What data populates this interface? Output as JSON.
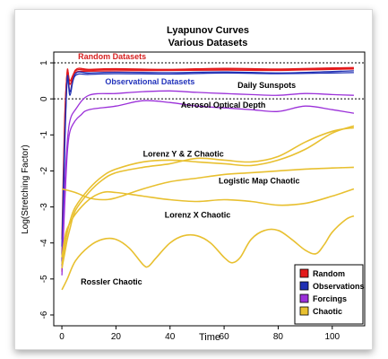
{
  "chart_data": {
    "type": "line",
    "title": "Lyapunov Curves",
    "subtitle": "Various Datasets",
    "xlabel": "Time",
    "ylabel": "Log(Stretching Factor)",
    "xlim": [
      -3,
      112
    ],
    "ylim": [
      -6.3,
      1.3
    ],
    "xticks": [
      0,
      20,
      40,
      60,
      80,
      100
    ],
    "yticks": [
      1,
      0,
      -1,
      -2,
      -3,
      -4,
      -5,
      -6
    ],
    "reference_lines": [
      1,
      0
    ],
    "grid": false,
    "legend_position": "bottom-right",
    "legend": [
      {
        "label": "Random",
        "color": "#e31a1c"
      },
      {
        "label": "Observations",
        "color": "#1f2fb4"
      },
      {
        "label": "Forcings",
        "color": "#9b30d9"
      },
      {
        "label": "Chaotic",
        "color": "#e8c030"
      }
    ],
    "annotations": [
      {
        "text": "Random Datasets",
        "x": 6,
        "y": 1.1,
        "color": "#d62020"
      },
      {
        "text": "Observational Datasets",
        "x": 16,
        "y": 0.4,
        "color": "#2233bb"
      },
      {
        "text": "Daily Sunspots",
        "x": 65,
        "y": 0.3,
        "color": "#000000"
      },
      {
        "text": "Aerosol Optical Depth",
        "x": 44,
        "y": -0.25,
        "color": "#000000"
      },
      {
        "text": "Lorenz Y & Z Chaotic",
        "x": 30,
        "y": -1.6,
        "color": "#000000"
      },
      {
        "text": "Logistic Map Chaotic",
        "x": 58,
        "y": -2.35,
        "color": "#000000"
      },
      {
        "text": "Lorenz X Chaotic",
        "x": 38,
        "y": -3.3,
        "color": "#000000"
      },
      {
        "text": "Rossler Chaotic",
        "x": 7,
        "y": -5.15,
        "color": "#000000"
      }
    ],
    "series": [
      {
        "group": "Random",
        "color": "#e31a1c",
        "x": [
          0,
          1,
          2,
          3,
          5,
          10,
          20,
          40,
          60,
          80,
          100,
          108
        ],
        "y": [
          -4.8,
          -1,
          0.8,
          0.2,
          0.8,
          0.82,
          0.84,
          0.82,
          0.85,
          0.83,
          0.86,
          0.87
        ]
      },
      {
        "group": "Random",
        "color": "#e31a1c",
        "x": [
          0,
          1,
          2,
          3,
          5,
          10,
          20,
          40,
          60,
          80,
          100,
          108
        ],
        "y": [
          -4.5,
          -0.8,
          0.75,
          0.4,
          0.78,
          0.8,
          0.82,
          0.8,
          0.83,
          0.81,
          0.84,
          0.85
        ]
      },
      {
        "group": "Random",
        "color": "#e31a1c",
        "x": [
          0,
          1,
          2,
          3,
          5,
          10,
          20,
          40,
          60,
          80,
          100,
          108
        ],
        "y": [
          -3.9,
          -0.6,
          0.7,
          0.5,
          0.74,
          0.77,
          0.78,
          0.79,
          0.8,
          0.79,
          0.82,
          0.83
        ]
      },
      {
        "group": "Observations",
        "color": "#1f2fb4",
        "x": [
          0,
          1,
          2,
          3,
          5,
          10,
          20,
          40,
          60,
          80,
          100,
          108
        ],
        "y": [
          -4.6,
          -1.5,
          0.6,
          0.1,
          0.7,
          0.72,
          0.74,
          0.73,
          0.75,
          0.72,
          0.76,
          0.78
        ]
      },
      {
        "group": "Observations",
        "color": "#1f2fb4",
        "x": [
          0,
          1,
          2,
          3,
          5,
          10,
          20,
          40,
          60,
          80,
          100,
          108
        ],
        "y": [
          -4.1,
          -1.2,
          0.55,
          0.2,
          0.65,
          0.68,
          0.7,
          0.69,
          0.72,
          0.7,
          0.72,
          0.73
        ]
      },
      {
        "group": "Forcings",
        "color": "#9b30d9",
        "x": [
          0,
          1,
          2,
          3,
          5,
          10,
          20,
          30,
          40,
          50,
          60,
          70,
          80,
          90,
          100,
          108
        ],
        "y": [
          -4.7,
          -2.5,
          -1.2,
          -0.6,
          -0.3,
          0.1,
          0.15,
          0.2,
          0.22,
          0.18,
          0.15,
          0.12,
          0.1,
          0.15,
          0.12,
          0.1
        ]
      },
      {
        "group": "Forcings",
        "color": "#9b30d9",
        "x": [
          0,
          1,
          2,
          3,
          5,
          7,
          10,
          20,
          30,
          40,
          50,
          60,
          70,
          80,
          90,
          100,
          108
        ],
        "y": [
          -4.9,
          -3,
          -1.5,
          -0.9,
          -0.6,
          -0.45,
          -0.3,
          -0.2,
          -0.05,
          -0.1,
          -0.2,
          -0.25,
          -0.3,
          -0.35,
          -0.2,
          -0.3,
          -0.4
        ]
      },
      {
        "group": "Chaotic",
        "name": "Lorenz Y",
        "color": "#e8c030",
        "x": [
          0,
          1,
          2,
          3,
          5,
          10,
          15,
          20,
          30,
          40,
          50,
          60,
          70,
          80,
          90,
          100,
          108
        ],
        "y": [
          -4.6,
          -4.1,
          -3.7,
          -3.4,
          -3,
          -2.5,
          -2.15,
          -1.95,
          -1.75,
          -1.7,
          -1.75,
          -1.8,
          -1.85,
          -1.7,
          -1.4,
          -0.95,
          -0.75
        ]
      },
      {
        "group": "Chaotic",
        "name": "Lorenz Z",
        "color": "#e8c030",
        "x": [
          0,
          1,
          2,
          3,
          5,
          10,
          15,
          20,
          30,
          40,
          50,
          60,
          70,
          80,
          90,
          100,
          108
        ],
        "y": [
          -4.7,
          -4.3,
          -3.9,
          -3.6,
          -3.1,
          -2.6,
          -2.25,
          -2.05,
          -1.9,
          -1.8,
          -1.65,
          -1.7,
          -1.75,
          -1.6,
          -1.2,
          -0.9,
          -0.8
        ]
      },
      {
        "group": "Chaotic",
        "name": "Logistic Map",
        "color": "#e8c030",
        "x": [
          0,
          5,
          10,
          15,
          20,
          30,
          40,
          50,
          60,
          70,
          80,
          90,
          100,
          108
        ],
        "y": [
          -2.5,
          -2.6,
          -2.75,
          -2.8,
          -2.75,
          -2.5,
          -2.3,
          -2.2,
          -2.1,
          -2.05,
          -2,
          -1.95,
          -1.92,
          -1.9
        ]
      },
      {
        "group": "Chaotic",
        "name": "Lorenz X",
        "color": "#e8c030",
        "x": [
          0,
          1,
          2,
          5,
          10,
          15,
          20,
          30,
          40,
          50,
          60,
          70,
          80,
          90,
          100,
          108
        ],
        "y": [
          -4.4,
          -3.9,
          -3.6,
          -3.2,
          -2.8,
          -2.6,
          -2.6,
          -2.7,
          -2.8,
          -2.85,
          -2.8,
          -2.85,
          -2.95,
          -2.9,
          -2.7,
          -2.5
        ]
      },
      {
        "group": "Chaotic",
        "name": "Rossler",
        "color": "#e8c030",
        "x": [
          0,
          2,
          5,
          10,
          15,
          20,
          25,
          30,
          32,
          35,
          40,
          45,
          50,
          55,
          60,
          63,
          66,
          70,
          75,
          80,
          85,
          90,
          94,
          97,
          100,
          105,
          108
        ],
        "y": [
          -5.3,
          -5,
          -4.5,
          -4.1,
          -3.9,
          -3.9,
          -4.15,
          -4.6,
          -4.65,
          -4.4,
          -4.0,
          -3.8,
          -3.8,
          -4.0,
          -4.4,
          -4.55,
          -4.4,
          -3.9,
          -3.65,
          -3.65,
          -3.9,
          -4.2,
          -4.3,
          -4.05,
          -3.7,
          -3.35,
          -3.25
        ]
      }
    ]
  }
}
